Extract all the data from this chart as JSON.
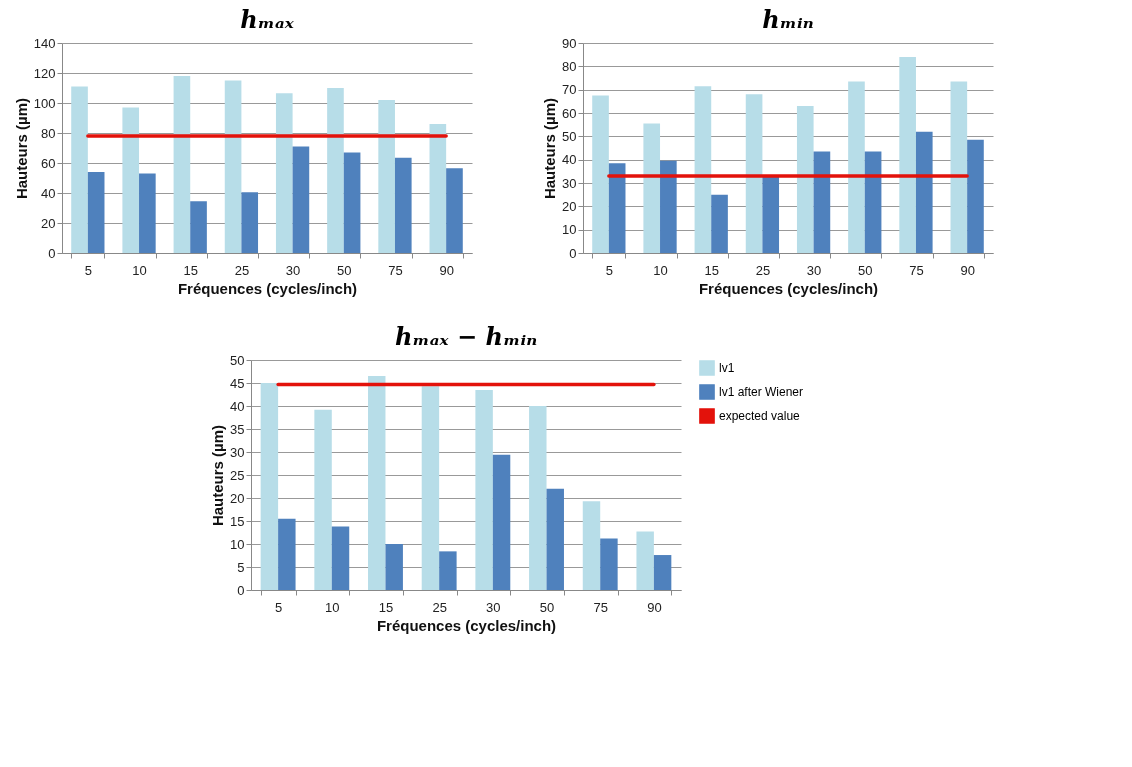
{
  "chart_data": [
    {
      "type": "bar",
      "title": "hₘₐₓ",
      "xlabel": "Fréquences (cycles/inch)",
      "ylabel": "Hauteurs (µm)",
      "categories": [
        "5",
        "10",
        "15",
        "25",
        "30",
        "50",
        "75",
        "90"
      ],
      "ylim": [
        0,
        140
      ],
      "yticks": [
        0,
        20,
        40,
        60,
        80,
        100,
        120,
        140
      ],
      "grid": "y",
      "legend": false,
      "series": [
        {
          "color": "#b7dde8",
          "values": [
            111,
            97,
            118,
            115,
            106.5,
            110,
            102,
            86
          ]
        },
        {
          "color": "#4f81bd",
          "values": [
            54,
            53,
            34.5,
            40.5,
            71,
            67,
            63.5,
            56.5
          ]
        },
        {
          "type": "line",
          "color": "#e3120b",
          "values": [
            78,
            78,
            78,
            78,
            78,
            78,
            78,
            78
          ]
        }
      ]
    },
    {
      "type": "bar",
      "title": "hₘᵢₙ",
      "xlabel": "Fréquences (cycles/inch)",
      "ylabel": "Hauteurs (µm)",
      "categories": [
        "5",
        "10",
        "15",
        "25",
        "30",
        "50",
        "75",
        "90"
      ],
      "ylim": [
        0,
        90
      ],
      "yticks": [
        0,
        10,
        20,
        30,
        40,
        50,
        60,
        70,
        80,
        90
      ],
      "grid": "y",
      "legend": false,
      "series": [
        {
          "color": "#b7dde8",
          "values": [
            67.5,
            55.5,
            71.5,
            68,
            63,
            73.5,
            84,
            73.5
          ]
        },
        {
          "color": "#4f81bd",
          "values": [
            38.5,
            39.5,
            25,
            33,
            43.5,
            43.5,
            52,
            48.5
          ]
        },
        {
          "type": "line",
          "color": "#e3120b",
          "values": [
            33,
            33,
            33,
            33,
            33,
            33,
            33,
            33
          ]
        }
      ]
    },
    {
      "type": "bar",
      "title": "hₘₐₓ − hₘᵢₙ",
      "xlabel": "Fréquences (cycles/inch)",
      "ylabel": "Hauteurs (µm)",
      "categories": [
        "5",
        "10",
        "15",
        "25",
        "30",
        "50",
        "75",
        "90"
      ],
      "ylim": [
        0,
        50
      ],
      "yticks": [
        0,
        5,
        10,
        15,
        20,
        25,
        30,
        35,
        40,
        45,
        50
      ],
      "grid": "y",
      "legend": "right",
      "series": [
        {
          "name": "lv1",
          "color": "#b7dde8",
          "values": [
            45,
            39.2,
            46.5,
            44.3,
            43.5,
            40,
            19.3,
            12.7
          ]
        },
        {
          "name": "lv1 after Wiener",
          "color": "#4f81bd",
          "values": [
            15.5,
            13.8,
            10,
            8.4,
            29.4,
            22,
            11.2,
            7.6
          ]
        },
        {
          "name": "expected value",
          "type": "line",
          "color": "#e3120b",
          "values": [
            44.7,
            44.7,
            44.7,
            44.7,
            44.7,
            44.7,
            44.7,
            44.7
          ]
        }
      ]
    }
  ]
}
